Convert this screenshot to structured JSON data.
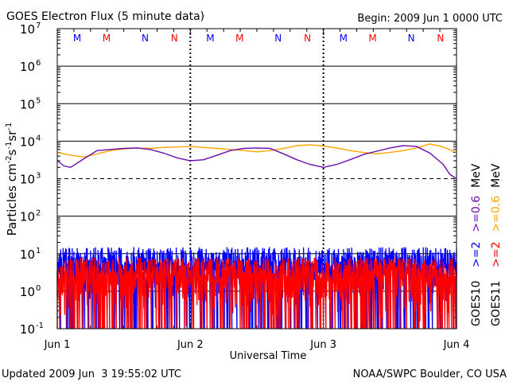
{
  "chart_data": {
    "type": "line",
    "title": "GOES Electron Flux (5 minute data)",
    "begin_label": "Begin: 2009 Jun 1 0000 UTC",
    "xlabel": "Universal Time",
    "ylabel": "Particles cm⁻²s⁻¹sr⁻¹",
    "ylabel_parts": {
      "base": "Particles cm",
      "e1": "-2",
      "s": "s",
      "e2": "-1",
      "sr": "sr",
      "e3": "-1"
    },
    "yscale": "log",
    "ylim_exp": [
      -1,
      7
    ],
    "y_ticks": [
      {
        "base": "10",
        "exp": "7"
      },
      {
        "base": "10",
        "exp": "6"
      },
      {
        "base": "10",
        "exp": "5"
      },
      {
        "base": "10",
        "exp": "4"
      },
      {
        "base": "10",
        "exp": "3"
      },
      {
        "base": "10",
        "exp": "2"
      },
      {
        "base": "10",
        "exp": "1"
      },
      {
        "base": "10",
        "exp": "0"
      },
      {
        "base": "10",
        "exp": "-1"
      }
    ],
    "x_ticks": [
      "Jun 1",
      "Jun 2",
      "Jun 3",
      "Jun 4"
    ],
    "xlim_days": [
      0,
      3
    ],
    "threshold_exp": 3,
    "noon_markers": [
      {
        "label": "M",
        "day": 0.15,
        "color": "#0000ff"
      },
      {
        "label": "M",
        "day": 0.37,
        "color": "#ff0000"
      },
      {
        "label": "N",
        "day": 0.66,
        "color": "#0000ff"
      },
      {
        "label": "N",
        "day": 0.88,
        "color": "#ff0000"
      },
      {
        "label": "M",
        "day": 1.15,
        "color": "#0000ff"
      },
      {
        "label": "M",
        "day": 1.37,
        "color": "#ff0000"
      },
      {
        "label": "N",
        "day": 1.66,
        "color": "#0000ff"
      },
      {
        "label": "N",
        "day": 1.88,
        "color": "#ff0000"
      },
      {
        "label": "M",
        "day": 2.15,
        "color": "#0000ff"
      },
      {
        "label": "M",
        "day": 2.37,
        "color": "#ff0000"
      },
      {
        "label": "N",
        "day": 2.66,
        "color": "#0000ff"
      },
      {
        "label": "N",
        "day": 2.88,
        "color": "#ff0000"
      }
    ],
    "series": [
      {
        "name": ">=0.6 MeV GOES11",
        "color": "#ffa500",
        "x": [
          0,
          0.1,
          0.2,
          0.3,
          0.4,
          0.5,
          0.6,
          0.7,
          0.8,
          0.9,
          1.0,
          1.1,
          1.2,
          1.3,
          1.4,
          1.5,
          1.6,
          1.7,
          1.8,
          1.9,
          2.0,
          2.1,
          2.2,
          2.3,
          2.4,
          2.5,
          2.6,
          2.7,
          2.8,
          2.9,
          3.0
        ],
        "y": [
          5000,
          4200,
          3800,
          4600,
          5600,
          6200,
          6600,
          6400,
          6800,
          7000,
          7200,
          6800,
          6400,
          6000,
          5600,
          5200,
          5600,
          6400,
          7600,
          8000,
          7400,
          6600,
          5600,
          5000,
          4600,
          5000,
          5600,
          6600,
          8400,
          7000,
          5000
        ]
      },
      {
        "name": ">=0.6 MeV GOES10",
        "color": "#6a0dad",
        "x": [
          0,
          0.05,
          0.1,
          0.2,
          0.3,
          0.4,
          0.5,
          0.6,
          0.7,
          0.8,
          0.9,
          1.0,
          1.1,
          1.2,
          1.3,
          1.4,
          1.5,
          1.6,
          1.7,
          1.8,
          1.9,
          2.0,
          2.1,
          2.2,
          2.3,
          2.4,
          2.5,
          2.6,
          2.7,
          2.8,
          2.9,
          2.95,
          3.0
        ],
        "y": [
          3000,
          2200,
          2000,
          3400,
          5600,
          6000,
          6400,
          6600,
          6000,
          4800,
          3600,
          3000,
          3200,
          4200,
          5600,
          6400,
          6600,
          6400,
          4600,
          3200,
          2400,
          2000,
          2400,
          3200,
          4400,
          5400,
          6600,
          7600,
          7200,
          4800,
          2400,
          1300,
          1000
        ]
      },
      {
        "name": ">=2 MeV GOES10",
        "color": "#0000ff",
        "range": [
          0.1,
          15
        ]
      },
      {
        "name": ">=2 MeV GOES11",
        "color": "#ff0000",
        "range": [
          0.1,
          8
        ]
      }
    ],
    "legend": [
      {
        "text": ">=2",
        "color": "#0000ff"
      },
      {
        "text": ">=0.6",
        "color": "#6a0dad"
      },
      {
        "text": "MeV",
        "color": "#000000"
      },
      {
        "text": ">=2",
        "color": "#ff0000"
      },
      {
        "text": ">=0.6",
        "color": "#ffa500"
      },
      {
        "text": "MeV",
        "color": "#000000"
      },
      {
        "text": "GOES10",
        "color": "#000000"
      },
      {
        "text": "GOES11",
        "color": "#000000"
      }
    ],
    "legend_placement": "right",
    "grid": true
  },
  "footer": {
    "updated": "Updated 2009 Jun  3 19:55:02 UTC",
    "credit": "NOAA/SWPC Boulder, CO USA"
  }
}
